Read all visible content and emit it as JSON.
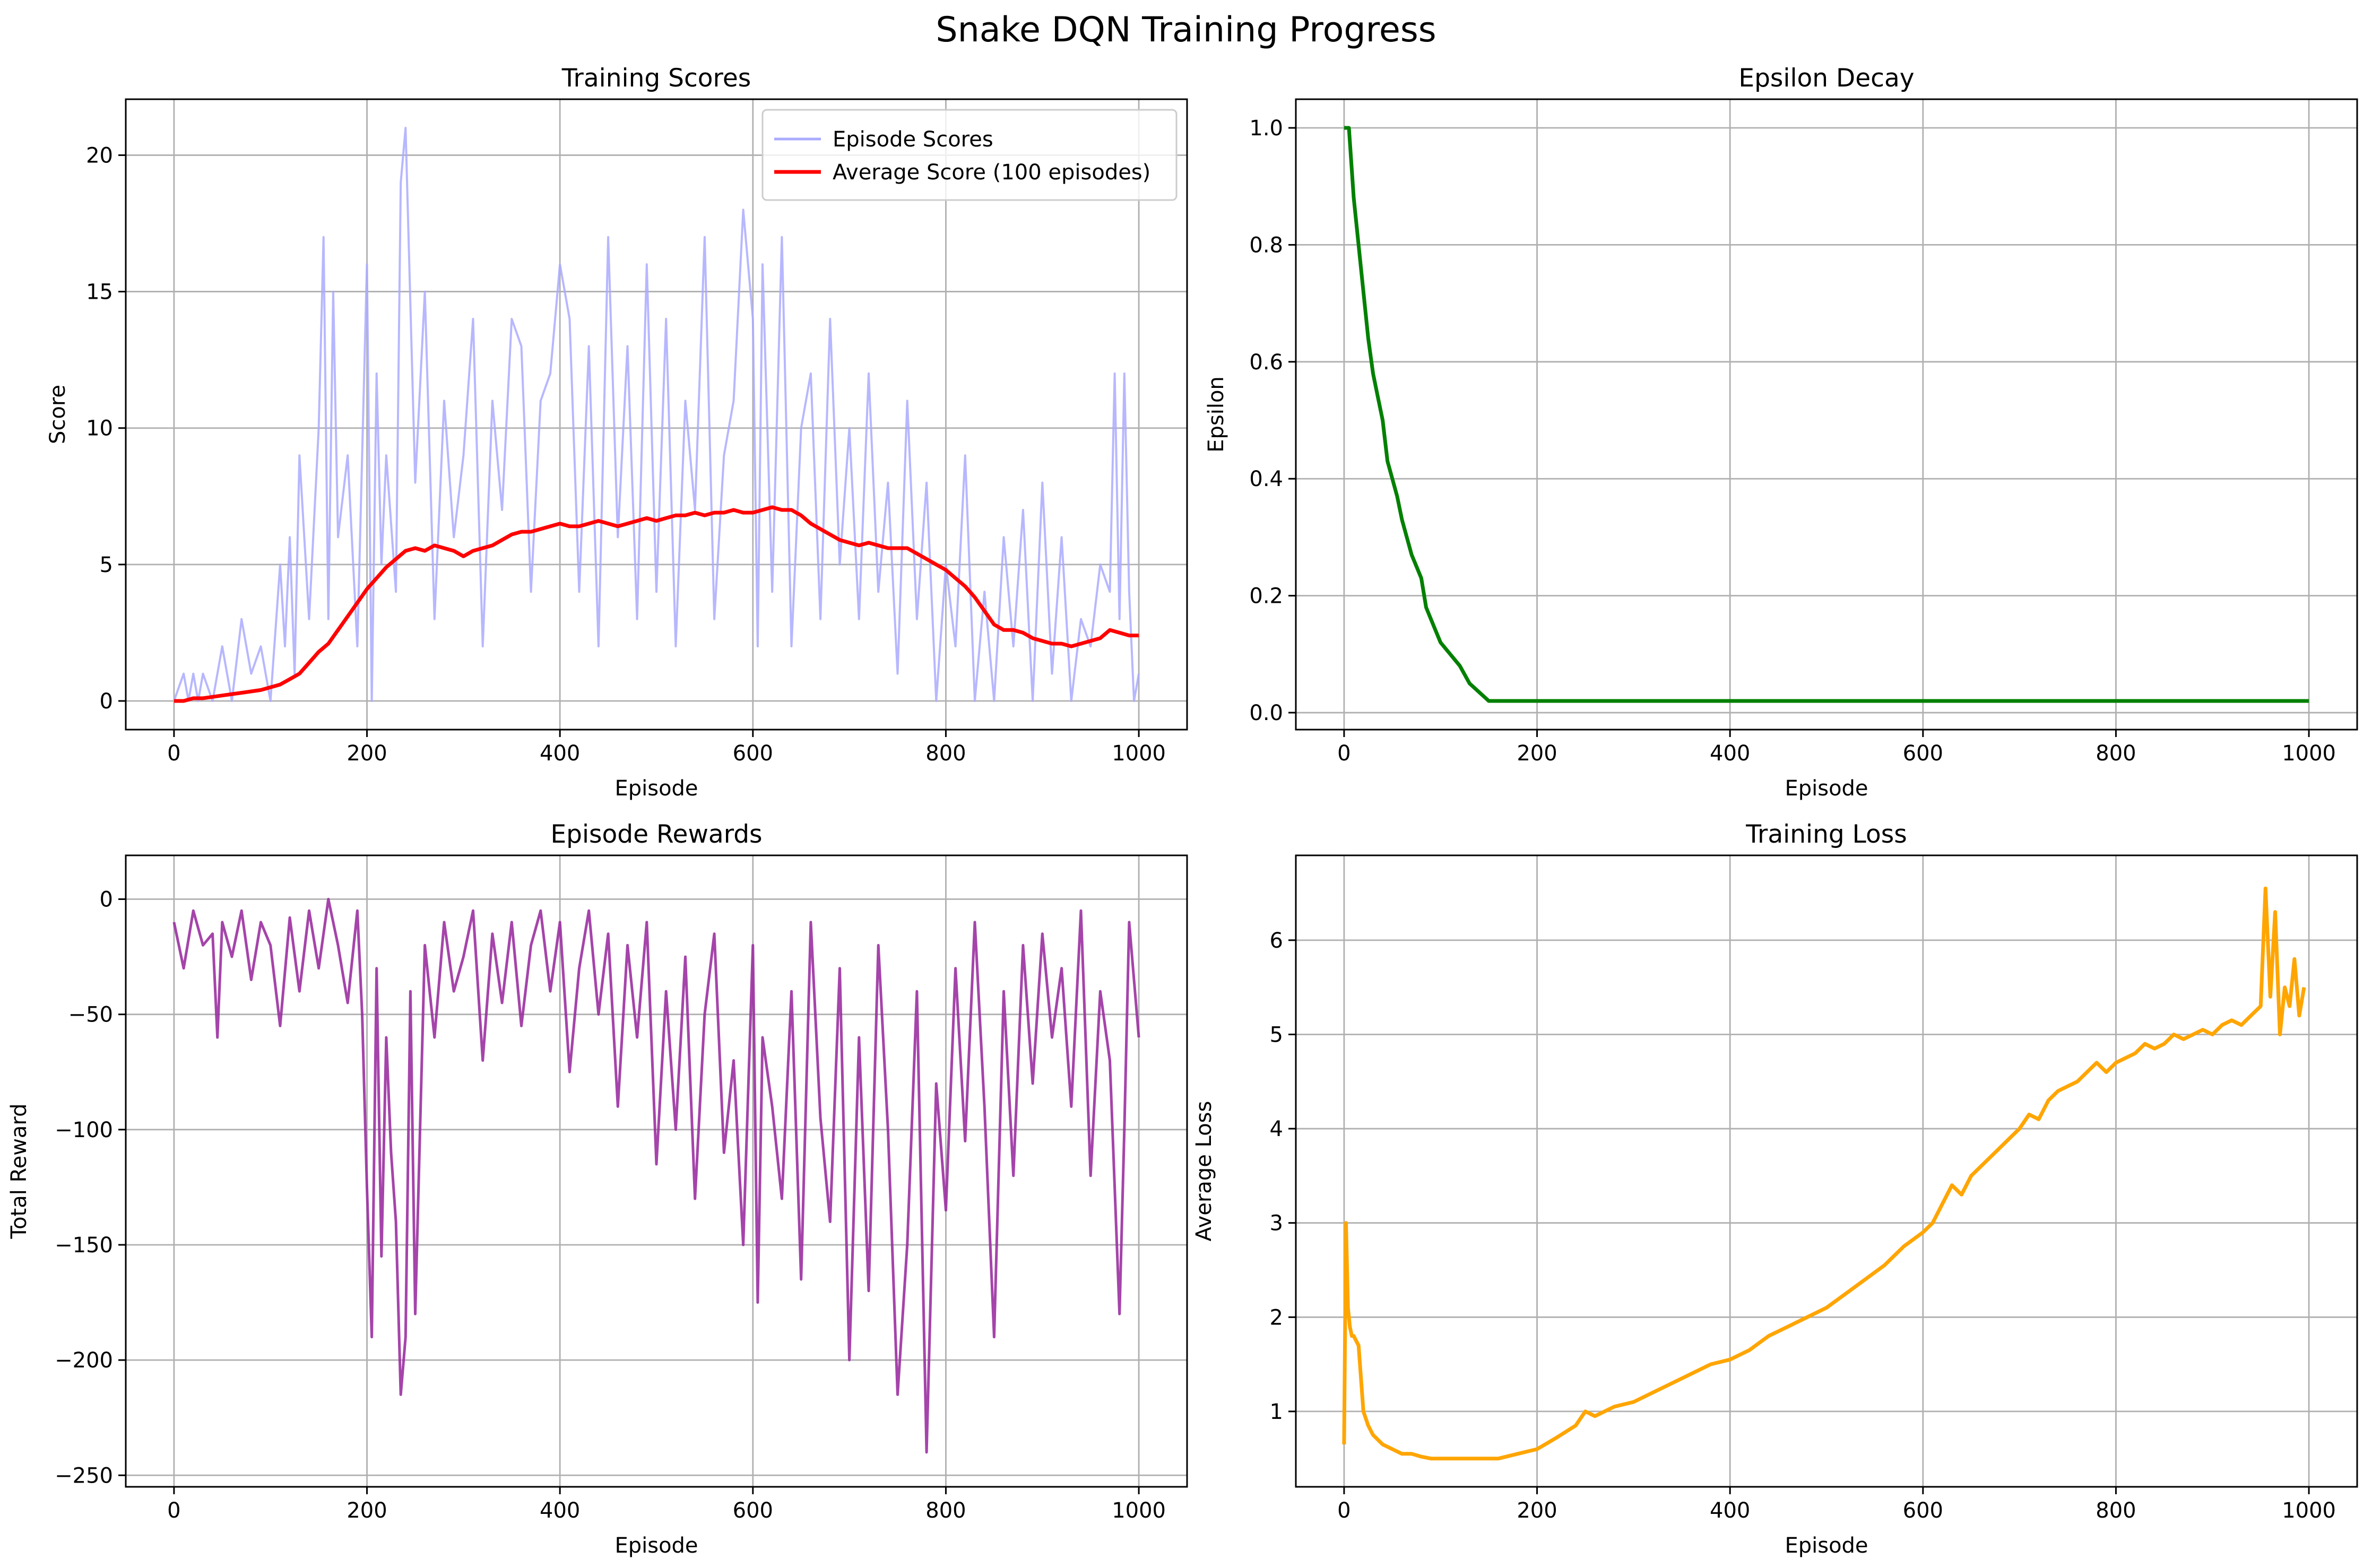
{
  "title": "Snake DQN Training Progress",
  "colors": {
    "episode_scores": "#aaaaff",
    "average_score": "#ff0000",
    "epsilon": "#008000",
    "rewards": "#9b30a1",
    "loss": "#ffa500"
  },
  "chart_data": [
    {
      "id": "scores",
      "type": "line",
      "title": "Training Scores",
      "xlabel": "Episode",
      "ylabel": "Score",
      "xlim": [
        -50,
        1050
      ],
      "ylim": [
        -1.05,
        22.05
      ],
      "xticks": [
        0,
        200,
        400,
        600,
        800,
        1000
      ],
      "yticks": [
        0,
        5,
        10,
        15,
        20
      ],
      "grid": true,
      "legend_position": "upper right",
      "series": [
        {
          "name": "Episode Scores",
          "color": "#aaaaff",
          "x": [
            0,
            10,
            15,
            20,
            25,
            30,
            40,
            50,
            60,
            70,
            80,
            90,
            100,
            110,
            115,
            120,
            125,
            130,
            140,
            150,
            155,
            160,
            165,
            170,
            180,
            190,
            200,
            205,
            210,
            215,
            220,
            230,
            235,
            240,
            250,
            260,
            270,
            280,
            290,
            300,
            310,
            320,
            330,
            340,
            350,
            360,
            370,
            380,
            390,
            400,
            410,
            420,
            430,
            440,
            450,
            460,
            470,
            480,
            490,
            500,
            510,
            520,
            530,
            540,
            550,
            560,
            570,
            580,
            590,
            600,
            605,
            610,
            620,
            630,
            640,
            650,
            660,
            670,
            680,
            690,
            700,
            710,
            720,
            730,
            740,
            750,
            760,
            770,
            780,
            790,
            800,
            810,
            820,
            830,
            840,
            850,
            860,
            870,
            880,
            890,
            900,
            910,
            920,
            930,
            940,
            950,
            960,
            970,
            975,
            980,
            985,
            990,
            995,
            1000
          ],
          "y": [
            0,
            1,
            0,
            1,
            0,
            1,
            0,
            2,
            0,
            3,
            1,
            2,
            0,
            5,
            2,
            6,
            1,
            9,
            3,
            10,
            17,
            3,
            15,
            6,
            9,
            2,
            16,
            0,
            12,
            5,
            9,
            4,
            19,
            21,
            8,
            15,
            3,
            11,
            6,
            9,
            14,
            2,
            11,
            7,
            14,
            13,
            4,
            11,
            12,
            16,
            14,
            4,
            13,
            2,
            17,
            6,
            13,
            3,
            16,
            4,
            14,
            2,
            11,
            7,
            17,
            3,
            9,
            11,
            18,
            14,
            2,
            16,
            4,
            17,
            2,
            10,
            12,
            3,
            14,
            5,
            10,
            3,
            12,
            4,
            8,
            1,
            11,
            3,
            8,
            0,
            5,
            2,
            9,
            0,
            4,
            0,
            6,
            2,
            7,
            0,
            8,
            1,
            6,
            0,
            3,
            2,
            5,
            4,
            12,
            3,
            12,
            4,
            0,
            1
          ]
        },
        {
          "name": "Average Score (100 episodes)",
          "color": "#ff0000",
          "x": [
            0,
            10,
            20,
            30,
            40,
            50,
            60,
            70,
            80,
            90,
            100,
            110,
            120,
            130,
            140,
            150,
            160,
            170,
            180,
            190,
            200,
            210,
            220,
            230,
            240,
            250,
            260,
            270,
            280,
            290,
            300,
            310,
            320,
            330,
            340,
            350,
            360,
            370,
            380,
            390,
            400,
            410,
            420,
            430,
            440,
            450,
            460,
            470,
            480,
            490,
            500,
            510,
            520,
            530,
            540,
            550,
            560,
            570,
            580,
            590,
            600,
            610,
            620,
            630,
            640,
            650,
            660,
            670,
            680,
            690,
            700,
            710,
            720,
            730,
            740,
            750,
            760,
            770,
            780,
            790,
            800,
            810,
            820,
            830,
            840,
            850,
            860,
            870,
            880,
            890,
            900,
            910,
            920,
            930,
            940,
            950,
            960,
            970,
            980,
            990,
            1000
          ],
          "y": [
            0,
            0,
            0.1,
            0.1,
            0.15,
            0.2,
            0.25,
            0.3,
            0.35,
            0.4,
            0.5,
            0.6,
            0.8,
            1.0,
            1.4,
            1.8,
            2.1,
            2.6,
            3.1,
            3.6,
            4.1,
            4.5,
            4.9,
            5.2,
            5.5,
            5.6,
            5.5,
            5.7,
            5.6,
            5.5,
            5.3,
            5.5,
            5.6,
            5.7,
            5.9,
            6.1,
            6.2,
            6.2,
            6.3,
            6.4,
            6.5,
            6.4,
            6.4,
            6.5,
            6.6,
            6.5,
            6.4,
            6.5,
            6.6,
            6.7,
            6.6,
            6.7,
            6.8,
            6.8,
            6.9,
            6.8,
            6.9,
            6.9,
            7.0,
            6.9,
            6.9,
            7.0,
            7.1,
            7.0,
            7.0,
            6.8,
            6.5,
            6.3,
            6.1,
            5.9,
            5.8,
            5.7,
            5.8,
            5.7,
            5.6,
            5.6,
            5.6,
            5.4,
            5.2,
            5.0,
            4.8,
            4.5,
            4.2,
            3.8,
            3.3,
            2.8,
            2.6,
            2.6,
            2.5,
            2.3,
            2.2,
            2.1,
            2.1,
            2.0,
            2.1,
            2.2,
            2.3,
            2.6,
            2.5,
            2.4,
            2.4
          ]
        }
      ]
    },
    {
      "id": "epsilon",
      "type": "line",
      "title": "Epsilon Decay",
      "xlabel": "Episode",
      "ylabel": "Epsilon",
      "xlim": [
        -50,
        1050
      ],
      "ylim": [
        -0.029,
        1.049
      ],
      "xticks": [
        0,
        200,
        400,
        600,
        800,
        1000
      ],
      "yticks": [
        0.0,
        0.2,
        0.4,
        0.6,
        0.8,
        1.0
      ],
      "grid": true,
      "series": [
        {
          "name": "",
          "color": "#008000",
          "x": [
            0,
            5,
            10,
            15,
            20,
            25,
            30,
            35,
            40,
            45,
            50,
            55,
            60,
            65,
            70,
            75,
            80,
            85,
            90,
            95,
            100,
            110,
            120,
            130,
            140,
            150,
            160,
            200,
            400,
            600,
            800,
            1000
          ],
          "y": [
            1.0,
            1.0,
            0.88,
            0.8,
            0.72,
            0.64,
            0.58,
            0.54,
            0.5,
            0.43,
            0.4,
            0.37,
            0.33,
            0.3,
            0.27,
            0.25,
            0.23,
            0.18,
            0.16,
            0.14,
            0.12,
            0.1,
            0.08,
            0.05,
            0.035,
            0.02,
            0.02,
            0.02,
            0.02,
            0.02,
            0.02,
            0.02
          ]
        }
      ]
    },
    {
      "id": "rewards",
      "type": "line",
      "title": "Episode Rewards",
      "xlabel": "Episode",
      "ylabel": "Total Reward",
      "xlim": [
        -50,
        1050
      ],
      "ylim": [
        -255,
        19
      ],
      "xticks": [
        0,
        200,
        400,
        600,
        800,
        1000
      ],
      "yticks": [
        0,
        -50,
        -100,
        -150,
        -200,
        -250
      ],
      "grid": true,
      "series": [
        {
          "name": "",
          "color": "#9b30a1",
          "x": [
            0,
            10,
            20,
            30,
            40,
            45,
            50,
            60,
            70,
            80,
            90,
            100,
            110,
            120,
            130,
            140,
            150,
            160,
            170,
            180,
            190,
            195,
            200,
            205,
            210,
            215,
            220,
            225,
            230,
            235,
            240,
            245,
            250,
            260,
            270,
            280,
            290,
            300,
            310,
            320,
            330,
            340,
            350,
            360,
            370,
            380,
            390,
            400,
            410,
            420,
            430,
            440,
            450,
            460,
            470,
            480,
            490,
            500,
            510,
            520,
            530,
            540,
            550,
            560,
            570,
            580,
            590,
            600,
            605,
            610,
            620,
            630,
            640,
            650,
            660,
            670,
            680,
            690,
            700,
            710,
            720,
            730,
            740,
            750,
            760,
            770,
            780,
            790,
            800,
            810,
            820,
            830,
            840,
            850,
            860,
            870,
            880,
            890,
            900,
            910,
            920,
            930,
            940,
            950,
            960,
            970,
            980,
            985,
            990,
            1000
          ],
          "y": [
            -10,
            -30,
            -5,
            -20,
            -15,
            -60,
            -10,
            -25,
            -5,
            -35,
            -10,
            -20,
            -55,
            -8,
            -40,
            -5,
            -30,
            0,
            -20,
            -45,
            -5,
            -50,
            -125,
            -190,
            -30,
            -155,
            -60,
            -110,
            -140,
            -215,
            -190,
            -40,
            -180,
            -20,
            -60,
            -10,
            -40,
            -25,
            -5,
            -70,
            -15,
            -45,
            -10,
            -55,
            -20,
            -5,
            -40,
            -10,
            -75,
            -30,
            -5,
            -50,
            -15,
            -90,
            -20,
            -60,
            -10,
            -115,
            -40,
            -100,
            -25,
            -130,
            -50,
            -15,
            -110,
            -70,
            -150,
            -20,
            -175,
            -60,
            -90,
            -130,
            -40,
            -165,
            -10,
            -95,
            -140,
            -30,
            -200,
            -60,
            -170,
            -20,
            -100,
            -215,
            -150,
            -40,
            -240,
            -80,
            -135,
            -30,
            -105,
            -10,
            -90,
            -190,
            -40,
            -120,
            -20,
            -80,
            -15,
            -60,
            -30,
            -90,
            -5,
            -120,
            -40,
            -70,
            -180,
            -100,
            -10,
            -60
          ]
        }
      ]
    },
    {
      "id": "loss",
      "type": "line",
      "title": "Training Loss",
      "xlabel": "Episode",
      "ylabel": "Average Loss",
      "xlim": [
        -50,
        1050
      ],
      "ylim": [
        0.2,
        6.9
      ],
      "xticks": [
        0,
        200,
        400,
        600,
        800,
        1000
      ],
      "yticks": [
        1,
        2,
        3,
        4,
        5,
        6
      ],
      "grid": true,
      "series": [
        {
          "name": "",
          "color": "#ffa500",
          "x": [
            0,
            2,
            4,
            6,
            8,
            10,
            15,
            20,
            25,
            30,
            40,
            50,
            60,
            70,
            80,
            90,
            100,
            120,
            140,
            160,
            180,
            200,
            220,
            240,
            250,
            260,
            280,
            300,
            320,
            340,
            360,
            380,
            400,
            420,
            440,
            460,
            480,
            500,
            520,
            540,
            560,
            580,
            600,
            610,
            620,
            630,
            640,
            650,
            660,
            670,
            680,
            690,
            700,
            710,
            720,
            730,
            740,
            750,
            760,
            770,
            780,
            790,
            800,
            810,
            820,
            830,
            840,
            850,
            860,
            870,
            880,
            890,
            900,
            910,
            920,
            930,
            940,
            950,
            955,
            960,
            965,
            970,
            975,
            980,
            985,
            990,
            995
          ],
          "y": [
            0.65,
            3.0,
            2.1,
            1.9,
            1.8,
            1.8,
            1.7,
            1.0,
            0.85,
            0.75,
            0.65,
            0.6,
            0.55,
            0.55,
            0.52,
            0.5,
            0.5,
            0.5,
            0.5,
            0.5,
            0.55,
            0.6,
            0.72,
            0.85,
            1.0,
            0.95,
            1.05,
            1.1,
            1.2,
            1.3,
            1.4,
            1.5,
            1.55,
            1.65,
            1.8,
            1.9,
            2.0,
            2.1,
            2.25,
            2.4,
            2.55,
            2.75,
            2.9,
            3.0,
            3.2,
            3.4,
            3.3,
            3.5,
            3.6,
            3.7,
            3.8,
            3.9,
            4.0,
            4.15,
            4.1,
            4.3,
            4.4,
            4.45,
            4.5,
            4.6,
            4.7,
            4.6,
            4.7,
            4.75,
            4.8,
            4.9,
            4.85,
            4.9,
            5.0,
            4.95,
            5.0,
            5.05,
            5.0,
            5.1,
            5.15,
            5.1,
            5.2,
            5.3,
            6.55,
            5.4,
            6.3,
            5.0,
            5.5,
            5.3,
            5.8,
            5.2,
            5.5
          ]
        }
      ]
    }
  ]
}
